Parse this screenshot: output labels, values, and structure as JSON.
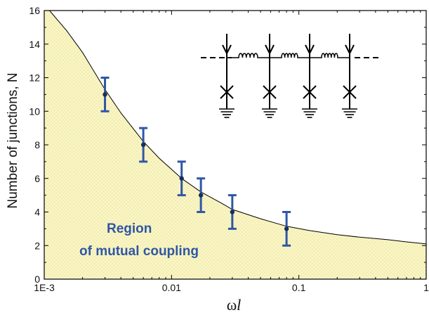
{
  "chart_data": {
    "type": "scatter",
    "x_scale": "log",
    "xlim": [
      0.001,
      1
    ],
    "ylim": [
      0,
      16
    ],
    "x_ticks": [
      0.001,
      0.01,
      0.1,
      1
    ],
    "x_tick_labels": [
      "1E-3",
      "0.01",
      "0.1",
      "1"
    ],
    "y_ticks": [
      0,
      2,
      4,
      6,
      8,
      10,
      12,
      14,
      16
    ],
    "y_tick_labels": [
      "0",
      "2",
      "4",
      "6",
      "8",
      "10",
      "12",
      "14",
      "16"
    ],
    "xlabel_main": "ω",
    "xlabel_italic": "l",
    "ylabel": "Number of junctions, N",
    "points": [
      {
        "x": 0.003,
        "y": 11,
        "err_low": 10,
        "err_high": 12
      },
      {
        "x": 0.006,
        "y": 8,
        "err_low": 7,
        "err_high": 9
      },
      {
        "x": 0.012,
        "y": 6,
        "err_low": 5,
        "err_high": 7
      },
      {
        "x": 0.017,
        "y": 5,
        "err_low": 4,
        "err_high": 6
      },
      {
        "x": 0.03,
        "y": 4,
        "err_low": 3,
        "err_high": 5
      },
      {
        "x": 0.08,
        "y": 3,
        "err_low": 2,
        "err_high": 4
      }
    ],
    "fit_curve": {
      "x": [
        0.0011,
        0.0015,
        0.002,
        0.003,
        0.004,
        0.006,
        0.008,
        0.012,
        0.017,
        0.025,
        0.03,
        0.05,
        0.08,
        0.12,
        0.2,
        0.3,
        0.5,
        0.7,
        1.0
      ],
      "y": [
        16.0,
        14.8,
        13.5,
        11.3,
        9.9,
        8.2,
        7.2,
        6.0,
        5.2,
        4.5,
        4.15,
        3.6,
        3.15,
        2.9,
        2.65,
        2.5,
        2.35,
        2.22,
        2.1
      ]
    },
    "region_label_line1": "Region",
    "region_label_line2": "of mutual coupling",
    "colors": {
      "errorbar": "#2f57a6",
      "point": "#1a2e5c",
      "fill": "#fbf8c8",
      "hatch": "#e8e09a",
      "curve": "#000000"
    }
  }
}
